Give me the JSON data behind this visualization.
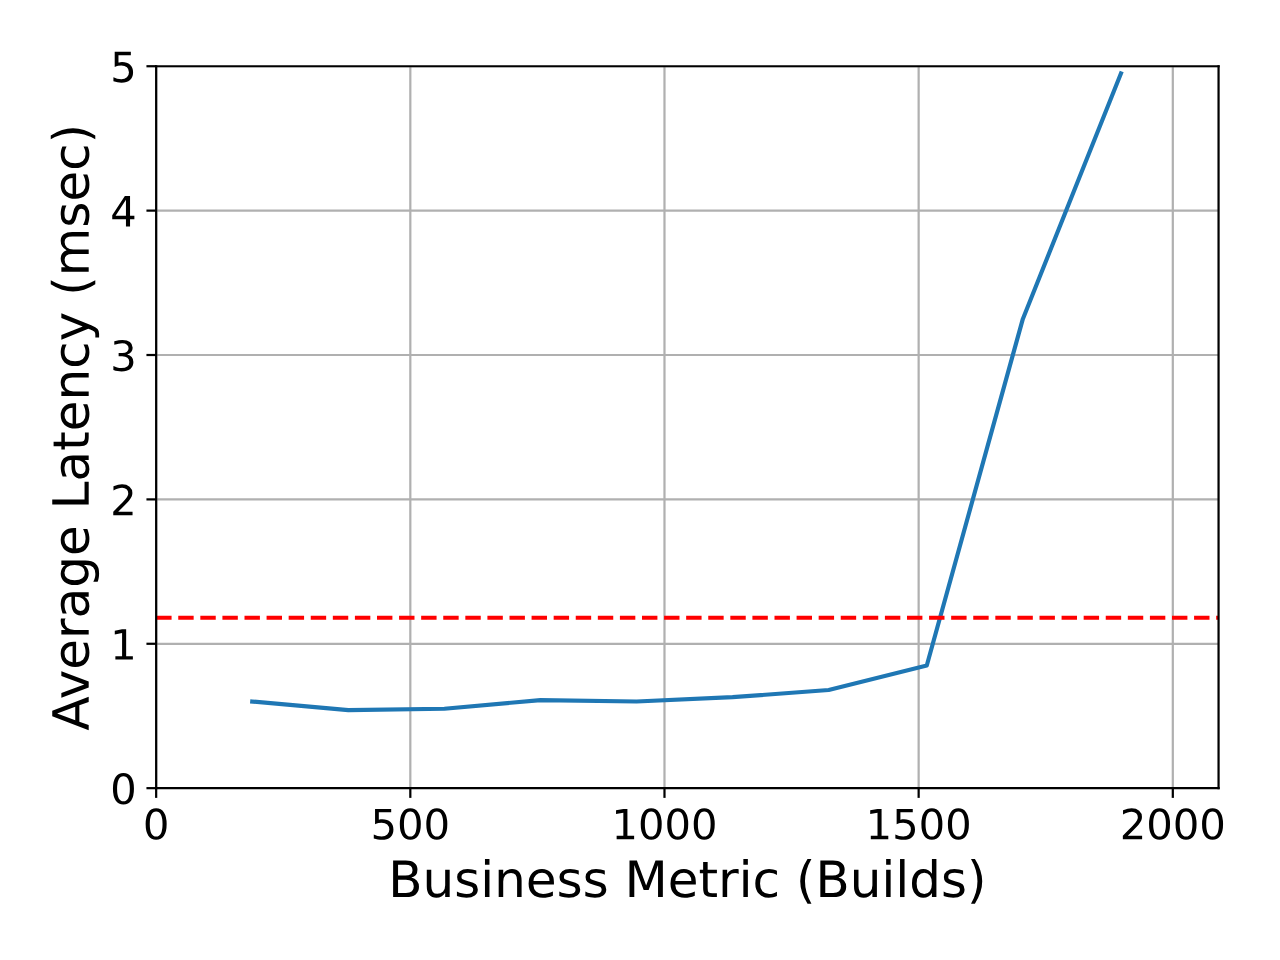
{
  "chart_data": {
    "type": "line",
    "xlabel": "Business Metric (Builds)",
    "ylabel": "Average Latency (msec)",
    "x": [
      189,
      378,
      567,
      756,
      945,
      1134,
      1323,
      1516,
      1705,
      1898
    ],
    "series": [
      {
        "color": "#1f77b4",
        "values": [
          0.6,
          0.54,
          0.55,
          0.61,
          0.6,
          0.63,
          0.68,
          0.85,
          3.25,
          4.95
        ]
      }
    ],
    "xlim": [
      0,
      2090
    ],
    "xticks": [
      0,
      500,
      1000,
      1500,
      2000
    ],
    "ylim": [
      0,
      5
    ],
    "yticks": [
      0,
      1,
      2,
      3,
      4,
      5
    ],
    "ref_lines": [
      {
        "axis": "y",
        "value": 1.18,
        "color": "#ff0000",
        "line_style": "dashed"
      }
    ],
    "grid": true,
    "line_style": "solid",
    "marker": "none"
  }
}
